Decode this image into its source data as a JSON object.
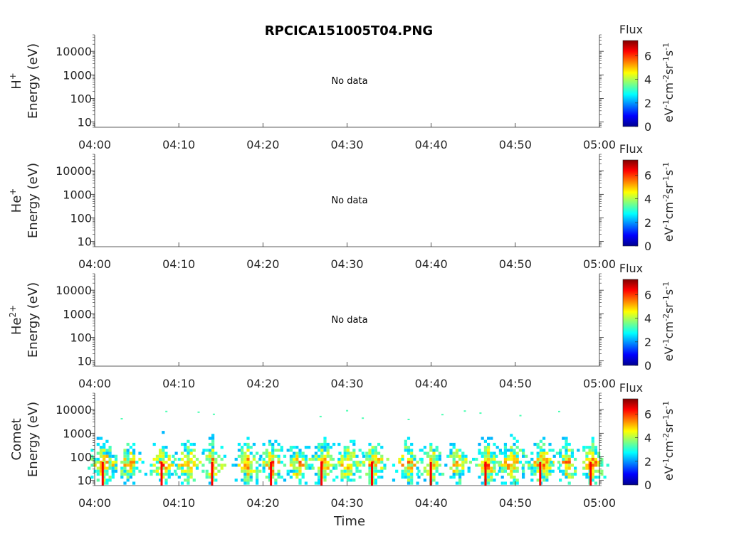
{
  "title": "RPCICA151005T04.PNG",
  "chart_data": [
    {
      "type": "heatmap",
      "panel": "H+",
      "ion": "H",
      "ion_sup": "+",
      "ylabel": "Energy (eV)",
      "status": "No data",
      "yscale": "log",
      "ylim": [
        6,
        50000
      ],
      "yticks": [
        "10",
        "100",
        "1000",
        "10000"
      ],
      "xticks": [
        "04:00",
        "04:10",
        "04:20",
        "04:30",
        "04:40",
        "04:50",
        "05:00"
      ],
      "xlim": [
        "04:00",
        "05:00"
      ],
      "colorbar": {
        "label": "Flux",
        "ticks": [
          "0",
          "2",
          "4",
          "6"
        ],
        "range": [
          0,
          7.3
        ],
        "units": "eV-1cm-2sr-1s-1"
      }
    },
    {
      "type": "heatmap",
      "panel": "He+",
      "ion": "He",
      "ion_sup": "+",
      "ylabel": "Energy (eV)",
      "status": "No data",
      "yscale": "log",
      "ylim": [
        6,
        50000
      ],
      "yticks": [
        "10",
        "100",
        "1000",
        "10000"
      ],
      "xticks": [
        "04:00",
        "04:10",
        "04:20",
        "04:30",
        "04:40",
        "04:50",
        "05:00"
      ],
      "xlim": [
        "04:00",
        "05:00"
      ],
      "colorbar": {
        "label": "Flux",
        "ticks": [
          "0",
          "2",
          "4",
          "6"
        ],
        "range": [
          0,
          7.3
        ],
        "units": "eV-1cm-2sr-1s-1"
      }
    },
    {
      "type": "heatmap",
      "panel": "He2+",
      "ion": "He",
      "ion_sup": "2+",
      "ylabel": "Energy (eV)",
      "status": "No data",
      "yscale": "log",
      "ylim": [
        6,
        50000
      ],
      "yticks": [
        "10",
        "100",
        "1000",
        "10000"
      ],
      "xticks": [
        "04:00",
        "04:10",
        "04:20",
        "04:30",
        "04:40",
        "04:50",
        "05:00"
      ],
      "xlim": [
        "04:00",
        "05:00"
      ],
      "colorbar": {
        "label": "Flux",
        "ticks": [
          "0",
          "2",
          "4",
          "6"
        ],
        "range": [
          0,
          7.3
        ],
        "units": "eV-1cm-2sr-1s-1"
      }
    },
    {
      "type": "heatmap",
      "panel": "Comet",
      "ion": "Comet",
      "ion_sup": "",
      "ylabel": "Energy (eV)",
      "status": "",
      "xlabel": "Time",
      "yscale": "log",
      "ylim": [
        6,
        50000
      ],
      "yticks": [
        "10",
        "100",
        "1000",
        "10000"
      ],
      "xticks": [
        "04:00",
        "04:10",
        "04:20",
        "04:30",
        "04:40",
        "04:50",
        "05:00"
      ],
      "xlim": [
        "04:00",
        "05:00"
      ],
      "colorbar": {
        "label": "Flux",
        "ticks": [
          "0",
          "2",
          "4",
          "6"
        ],
        "range": [
          0,
          7.3
        ],
        "units": "eV-1cm-2sr-1s-1"
      },
      "bursts_minutes": [
        1,
        4,
        8,
        11,
        14,
        18,
        21,
        24,
        27,
        30,
        33,
        37,
        40,
        43,
        46.5,
        49.5,
        53,
        56,
        59
      ]
    }
  ]
}
